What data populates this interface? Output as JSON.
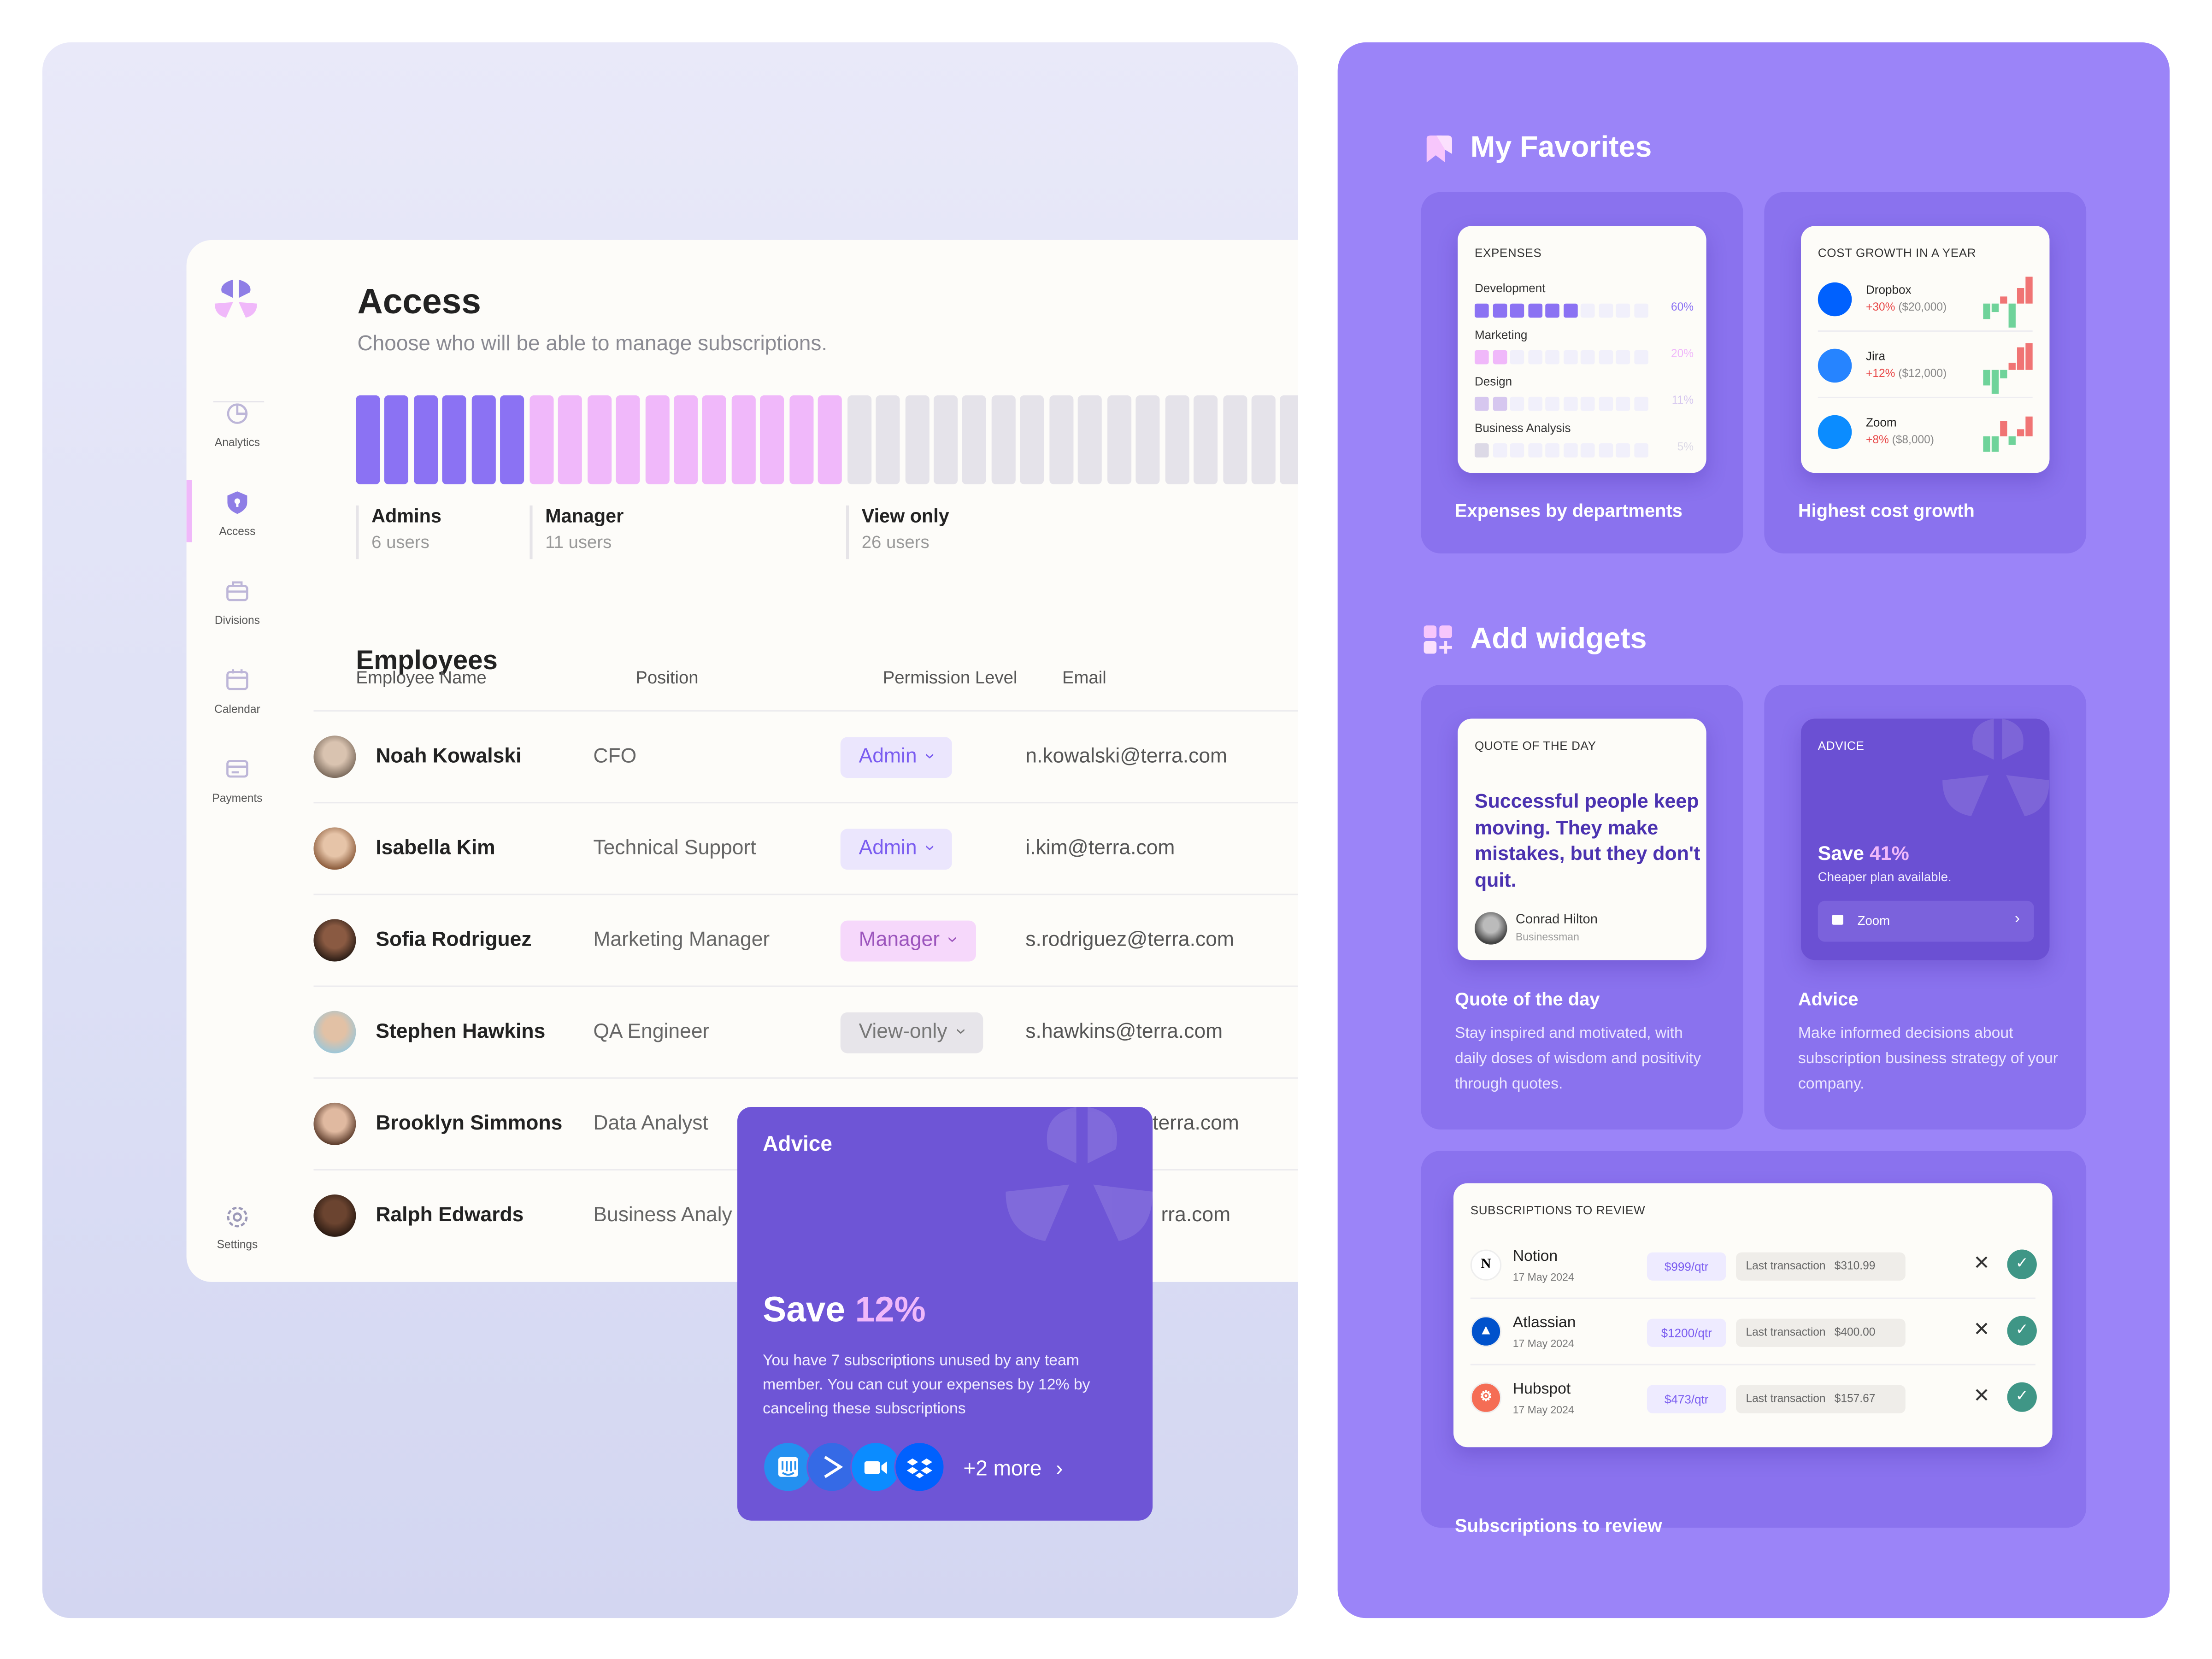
{
  "sidebar": {
    "items": [
      {
        "label": "Analytics",
        "icon": "pie-chart-icon"
      },
      {
        "label": "Access",
        "icon": "shield-icon",
        "active": true
      },
      {
        "label": "Divisions",
        "icon": "briefcase-icon"
      },
      {
        "label": "Calendar",
        "icon": "calendar-icon"
      },
      {
        "label": "Payments",
        "icon": "card-icon"
      }
    ],
    "settings": "Settings"
  },
  "access": {
    "title": "Access",
    "subtitle": "Choose who will be able to manage subscriptions.",
    "groups": [
      {
        "label": "Admins",
        "count": "6 users",
        "users": 6,
        "color": "#8b72f3"
      },
      {
        "label": "Manager",
        "count": "11 users",
        "users": 11,
        "color": "#f0b8fa"
      },
      {
        "label": "View only",
        "count": "26 users",
        "users": 26,
        "color": "#e5e3ea"
      }
    ]
  },
  "employees": {
    "title": "Employees",
    "columns": [
      "Employee Name",
      "Position",
      "Permission Level",
      "Email"
    ],
    "rows": [
      {
        "name": "Noah Kowalski",
        "position": "CFO",
        "permission": "Admin",
        "email": "n.kowalski@terra.com"
      },
      {
        "name": "Isabella Kim",
        "position": "Technical Support",
        "permission": "Admin",
        "email": "i.kim@terra.com"
      },
      {
        "name": "Sofia Rodriguez",
        "position": "Marketing Manager",
        "permission": "Manager",
        "email": "s.rodriguez@terra.com"
      },
      {
        "name": "Stephen Hawkins",
        "position": "QA Engineer",
        "permission": "View-only",
        "email": "s.hawkins@terra.com"
      },
      {
        "name": "Brooklyn Simmons",
        "position": "Data Analyst",
        "permission": "",
        "email": "terra.com"
      },
      {
        "name": "Ralph Edwards",
        "position": "Business Analy",
        "permission": "",
        "email": "rra.com"
      }
    ]
  },
  "advice_popup": {
    "title": "Advice",
    "save": "Save",
    "percent": "12%",
    "text": "You have 7 subscriptions unused by any team member. You can cut your expenses by 12% by canceling these subscriptions",
    "apps": [
      "intercom-icon",
      "activecampaign-icon",
      "zoom-icon",
      "dropbox-icon"
    ],
    "more": "+2 more"
  },
  "favorites": {
    "title": "My Favorites",
    "expenses": {
      "label": "EXPENSES",
      "caption": "Expenses by departments",
      "items": [
        {
          "name": "Development",
          "percent": "60%",
          "filled": 6,
          "color": "#8b72f3"
        },
        {
          "name": "Marketing",
          "percent": "20%",
          "filled": 2,
          "color": "#f0b8fa"
        },
        {
          "name": "Design",
          "percent": "11%",
          "filled": 2,
          "color": "#d6c7ef"
        },
        {
          "name": "Business Analysis",
          "percent": "5%",
          "filled": 1,
          "color": "#dcd9e6"
        }
      ]
    },
    "growth": {
      "label": "COST GROWTH IN A YEAR",
      "caption": "Highest cost growth",
      "items": [
        {
          "name": "Dropbox",
          "change": "+30%",
          "amount": "($20,000)",
          "color": "#0061fe",
          "trend": [
            -2,
            -1,
            1,
            -3,
            2,
            3.5
          ]
        },
        {
          "name": "Jira",
          "change": "+12%",
          "amount": "($12,000)",
          "color": "#2684ff",
          "trend": [
            -2,
            -3,
            -1,
            1,
            3,
            3.5
          ]
        },
        {
          "name": "Zoom",
          "change": "+8%",
          "amount": "($8,000)",
          "color": "#0b8cff",
          "trend": [
            -2,
            -2,
            2,
            -1,
            1,
            2.5
          ]
        }
      ]
    }
  },
  "widgets": {
    "title": "Add widgets",
    "quote": {
      "label": "QUOTE OF THE DAY",
      "text": "Successful people keep moving. They make mistakes, but they don't quit.",
      "author": "Conrad Hilton",
      "role": "Businessman",
      "caption": "Quote of the day",
      "desc": "Stay inspired and motivated, with daily doses of wisdom and positivity through quotes."
    },
    "advice": {
      "label": "ADVICE",
      "save": "Save",
      "percent": "41%",
      "text": "Cheaper plan available.",
      "app": "Zoom",
      "caption": "Advice",
      "desc": "Make informed decisions about subscription business strategy of your company."
    },
    "subs": {
      "label": "SUBSCRIPTIONS TO REVIEW",
      "caption": "Subscriptions to review",
      "items": [
        {
          "name": "Notion",
          "date": "17 May 2024",
          "price": "$999/qtr",
          "last_label": "Last transaction",
          "last": "$310.99",
          "color": "#ffffff"
        },
        {
          "name": "Atlassian",
          "date": "17 May 2024",
          "price": "$1200/qtr",
          "last_label": "Last transaction",
          "last": "$400.00",
          "color": "#0052cc"
        },
        {
          "name": "Hubspot",
          "date": "17 May 2024",
          "price": "$473/qtr",
          "last_label": "Last transaction",
          "last": "$157.67",
          "color": "#f56d55"
        }
      ]
    }
  }
}
